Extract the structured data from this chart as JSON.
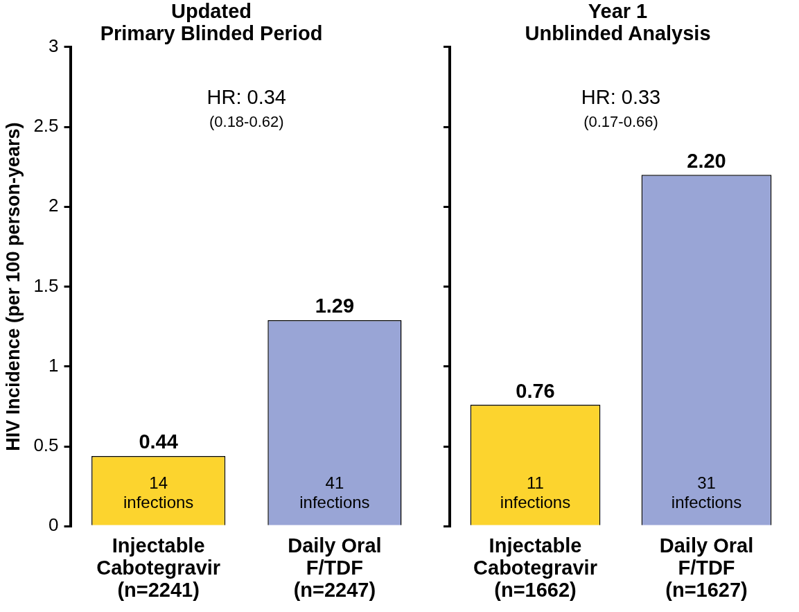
{
  "chart_data": [
    {
      "type": "bar",
      "title": "Updated\nPrimary Blinded Period",
      "ylabel": "HIV Incidence (per 100 person-years)",
      "categories": [
        "Injectable\nCabotegravir\n(n=2241)",
        "Daily Oral\nF/TDF\n(n=2247)"
      ],
      "values": [
        0.44,
        1.29
      ],
      "colors": [
        "#fcd42e",
        "#99a5d6"
      ],
      "value_labels": [
        "0.44",
        "1.29"
      ],
      "ylim": [
        0,
        3
      ],
      "yticks": [
        0,
        0.5,
        1,
        1.5,
        2,
        2.5,
        3
      ],
      "grid": false,
      "legend": false,
      "annotations": [
        "HR: 0.34",
        "(0.18-0.62)",
        "14\ninfections",
        "41\ninfections"
      ]
    },
    {
      "type": "bar",
      "title": "Year 1\nUnblinded Analysis",
      "categories": [
        "Injectable\nCabotegravir\n(n=1662)",
        "Daily Oral\nF/TDF\n(n=1627)"
      ],
      "values": [
        0.76,
        2.2
      ],
      "colors": [
        "#fcd42e",
        "#99a5d6"
      ],
      "value_labels": [
        "0.76",
        "2.20"
      ],
      "ylim": [
        0,
        3
      ],
      "yticks": [
        0,
        0.5,
        1,
        1.5,
        2,
        2.5,
        3
      ],
      "grid": false,
      "legend": false,
      "tick_labels": "x",
      "annotations": [
        "HR: 0.33",
        "(0.17-0.66)",
        "11\ninfections",
        "31\ninfections"
      ]
    }
  ]
}
